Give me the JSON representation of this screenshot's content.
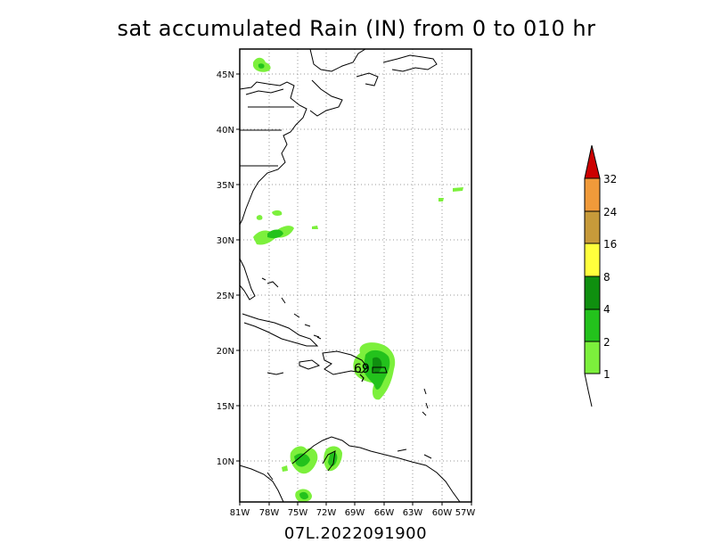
{
  "title": "sat accumulated Rain (IN) from 0 to 010 hr",
  "subtitle": "07L.2022091900",
  "lon_ticks": [
    "81W",
    "78W",
    "75W",
    "72W",
    "69W",
    "66W",
    "63W",
    "60W",
    "57W"
  ],
  "lat_ticks": [
    "45N",
    "40N",
    "35N",
    "30N",
    "25N",
    "20N",
    "15N",
    "10N"
  ],
  "colorbar": {
    "labels": [
      "1",
      "2",
      "4",
      "8",
      "16",
      "24",
      "32"
    ],
    "colors": [
      "#7cf03c",
      "#23c21c",
      "#0f8f0f",
      "#ffff3c",
      "#c79a3a",
      "#f09a3a",
      "#cc0000"
    ]
  },
  "storm_marker": "69"
}
